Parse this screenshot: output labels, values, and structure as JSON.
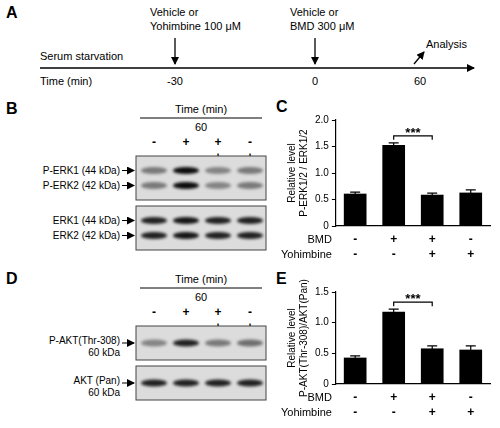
{
  "timeline": {
    "panel": "A",
    "start": "Serum starvation",
    "axis_label": "Time (min)",
    "events": [
      {
        "time": -30,
        "text": [
          "Vehicle or",
          "Yohimbine 100 μM"
        ]
      },
      {
        "time": 0,
        "text": [
          "Vehicle or",
          "BMD 300 μM"
        ]
      },
      {
        "time": 60,
        "text": [
          "Analysis"
        ]
      }
    ]
  },
  "blots": [
    {
      "panel": "B",
      "time_label": "Time (min)",
      "time": 60,
      "conditions": [
        [
          "-",
          "+",
          "+",
          "-"
        ],
        [
          "-",
          "-",
          "+",
          "+"
        ]
      ],
      "membranes": [
        {
          "bands": [
            {
              "name": "P-ERK1",
              "size": "(44 kDa)"
            },
            {
              "name": "P-ERK2",
              "size": "(42 kDa)"
            }
          ]
        },
        {
          "bands": [
            {
              "name": "ERK1",
              "size": "(44 kDa)"
            },
            {
              "name": "ERK2",
              "size": "(42 kDa)"
            }
          ]
        }
      ]
    },
    {
      "panel": "D",
      "time_label": "Time (min)",
      "time": 60,
      "conditions": [
        [
          "-",
          "+",
          "+",
          "-"
        ],
        [
          "-",
          "-",
          "+",
          "+"
        ]
      ],
      "membranes": [
        {
          "bands": [
            {
              "name": "P-AKT(Thr-308)",
              "size": "60 kDa"
            }
          ]
        },
        {
          "bands": [
            {
              "name": "AKT (Pan)",
              "size": "60 kDa"
            }
          ]
        }
      ]
    }
  ],
  "chart_data": [
    {
      "panel": "C",
      "type": "bar",
      "y_label": [
        "Relative level",
        "P-ERK1/2 / ERK1/2"
      ],
      "categories": [
        null,
        null,
        null,
        null
      ],
      "values": [
        0.61,
        1.53,
        0.59,
        0.63
      ],
      "error": [
        0.03,
        0.04,
        0.03,
        0.05
      ],
      "color": "#000000",
      "ylim": [
        0,
        2
      ],
      "yticks": [
        0,
        0.5,
        {
          "value": 1,
          "label": "1.0"
        },
        1.5,
        {
          "value": 2,
          "label": "2.0"
        }
      ],
      "grid": false,
      "conditions": [
        {
          "name": "BMD",
          "values": [
            "-",
            "+",
            "+",
            "-"
          ]
        },
        {
          "name": "Yohimbine",
          "values": [
            "-",
            "-",
            "+",
            "+"
          ]
        }
      ],
      "significance": [
        {
          "between": [
            1,
            2
          ],
          "text": "***"
        }
      ]
    },
    {
      "panel": "E",
      "type": "bar",
      "y_label": [
        "Relative level",
        "P-AKT(Thr-308)/AKT(Pan)"
      ],
      "categories": [
        null,
        null,
        null,
        null
      ],
      "values": [
        0.43,
        1.18,
        0.58,
        0.56
      ],
      "error": [
        0.03,
        0.04,
        0.04,
        0.06
      ],
      "color": "#000000",
      "ylim": [
        0,
        1.5
      ],
      "yticks": [
        0,
        0.5,
        {
          "value": 1,
          "label": "1.0"
        },
        1.5
      ],
      "grid": false,
      "conditions": [
        {
          "name": "BMD",
          "values": [
            "-",
            "+",
            "+",
            "-"
          ]
        },
        {
          "name": "Yohimbine",
          "values": [
            "-",
            "-",
            "+",
            "+"
          ]
        }
      ],
      "significance": [
        {
          "between": [
            1,
            2
          ],
          "text": "***"
        }
      ]
    }
  ]
}
